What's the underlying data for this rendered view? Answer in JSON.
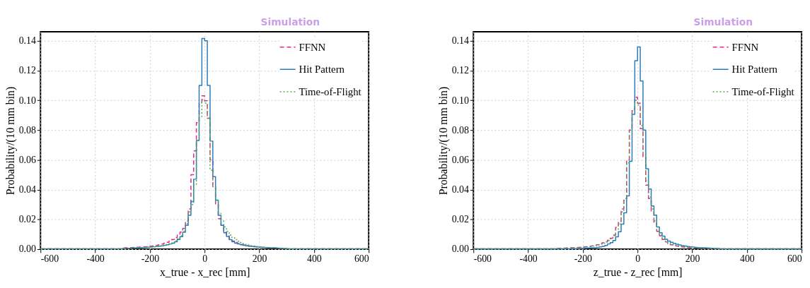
{
  "chart_data": [
    {
      "type": "histogram",
      "xlabel": "x_true - x_rec [mm]",
      "ylabel": "Probability/(10 mm bin)",
      "annotations": [
        "Simulation"
      ],
      "bins": [
        -600,
        -300,
        -290,
        -280,
        -270,
        -260,
        -250,
        -240,
        -230,
        -220,
        -210,
        -200,
        -190,
        -180,
        -170,
        -160,
        -150,
        -140,
        -130,
        -120,
        -110,
        -100,
        -90,
        -80,
        -70,
        -60,
        -50,
        -40,
        -30,
        -20,
        -10,
        0,
        10,
        20,
        30,
        40,
        50,
        60,
        70,
        80,
        90,
        100,
        110,
        120,
        130,
        140,
        150,
        160,
        170,
        180,
        190,
        200,
        210,
        220,
        230,
        240,
        250,
        260,
        270,
        280,
        290,
        300,
        600
      ],
      "series": [
        {
          "name": "FFNN",
          "color": "#e7298a",
          "line_style": "dashed",
          "values": [
            0.0003,
            0.0008,
            0.0009,
            0.001,
            0.0011,
            0.0012,
            0.0013,
            0.0014,
            0.0015,
            0.0016,
            0.0018,
            0.002,
            0.0023,
            0.0026,
            0.003,
            0.0034,
            0.004,
            0.0046,
            0.0055,
            0.0065,
            0.0078,
            0.0095,
            0.0115,
            0.014,
            0.019,
            0.027,
            0.05,
            0.066,
            0.085,
            0.098,
            0.103,
            0.0997,
            0.088,
            0.06,
            0.042,
            0.03,
            0.0205,
            0.016,
            0.0115,
            0.009,
            0.007,
            0.0055,
            0.0045,
            0.0038,
            0.0032,
            0.0028,
            0.0024,
            0.0021,
            0.0019,
            0.0017,
            0.0015,
            0.0013,
            0.0012,
            0.0011,
            0.001,
            0.0009,
            0.0008,
            0.0007,
            0.0006,
            0.0006,
            0.0005,
            0.0003
          ]
        },
        {
          "name": "Hit Pattern",
          "color": "#2b7bba",
          "line_style": "solid",
          "values": [
            0.0003,
            0.0005,
            0.0006,
            0.0006,
            0.0007,
            0.0008,
            0.0009,
            0.001,
            0.0011,
            0.0012,
            0.0013,
            0.0014,
            0.0016,
            0.0018,
            0.002,
            0.0023,
            0.0026,
            0.003,
            0.0035,
            0.004,
            0.005,
            0.0065,
            0.0084,
            0.0114,
            0.016,
            0.0228,
            0.032,
            0.047,
            0.073,
            0.11,
            0.1415,
            0.14,
            0.11,
            0.0726,
            0.0487,
            0.033,
            0.0228,
            0.016,
            0.011,
            0.0085,
            0.0064,
            0.005,
            0.004,
            0.0035,
            0.003,
            0.0026,
            0.0023,
            0.002,
            0.0018,
            0.0016,
            0.0014,
            0.0013,
            0.0012,
            0.0011,
            0.001,
            0.0009,
            0.0008,
            0.0007,
            0.0006,
            0.0006,
            0.0005,
            0.0003
          ]
        },
        {
          "name": "Time-of-Flight",
          "color": "#4daf4a",
          "line_style": "dotted",
          "values": [
            0.0003,
            0.0004,
            0.0005,
            0.0005,
            0.0006,
            0.0007,
            0.0008,
            0.0009,
            0.001,
            0.0011,
            0.0012,
            0.0013,
            0.0015,
            0.0017,
            0.002,
            0.0023,
            0.0027,
            0.0032,
            0.0038,
            0.0046,
            0.0056,
            0.007,
            0.009,
            0.012,
            0.017,
            0.025,
            0.03,
            0.043,
            0.073,
            0.089,
            0.1005,
            0.098,
            0.088,
            0.053,
            0.042,
            0.032,
            0.024,
            0.019,
            0.015,
            0.012,
            0.0095,
            0.0078,
            0.0064,
            0.0053,
            0.0045,
            0.0038,
            0.0032,
            0.0028,
            0.0024,
            0.0021,
            0.0018,
            0.0016,
            0.0014,
            0.0012,
            0.0011,
            0.001,
            0.0009,
            0.0008,
            0.0007,
            0.0006,
            0.0005,
            0.0003
          ]
        }
      ],
      "xlim": [
        -600,
        600
      ],
      "xticks": [
        -600,
        -400,
        -200,
        0,
        200,
        400,
        600
      ],
      "ylim": [
        0,
        0.146
      ],
      "yticks": [
        {
          "value": 0,
          "label": "0.00"
        },
        {
          "value": 0.02,
          "label": "0.02"
        },
        {
          "value": 0.04,
          "label": "0.04"
        },
        {
          "value": 0.06,
          "label": "0.06"
        },
        {
          "value": 0.08,
          "label": "0.08"
        },
        {
          "value": 0.1,
          "label": "0.10"
        },
        {
          "value": 0.12,
          "label": "0.12"
        },
        {
          "value": 0.14,
          "label": "0.14"
        }
      ],
      "grid": true,
      "legend": "top right"
    },
    {
      "type": "histogram",
      "xlabel": "z_true - z_rec [mm]",
      "ylabel": "Probability/(10 mm bin)",
      "annotations": [
        "Simulation"
      ],
      "bins": [
        -600,
        -300,
        -290,
        -280,
        -270,
        -260,
        -250,
        -240,
        -230,
        -220,
        -210,
        -200,
        -190,
        -180,
        -170,
        -160,
        -150,
        -140,
        -130,
        -120,
        -110,
        -100,
        -90,
        -80,
        -70,
        -60,
        -50,
        -40,
        -30,
        -20,
        -10,
        0,
        10,
        20,
        30,
        40,
        50,
        60,
        70,
        80,
        90,
        100,
        110,
        120,
        130,
        140,
        150,
        160,
        170,
        180,
        190,
        200,
        210,
        220,
        230,
        240,
        250,
        260,
        270,
        280,
        290,
        300,
        600
      ],
      "series": [
        {
          "name": "FFNN",
          "color": "#e7298a",
          "line_style": "dashed",
          "values": [
            0.0002,
            0.0006,
            0.0006,
            0.0007,
            0.0007,
            0.0008,
            0.0009,
            0.001,
            0.0011,
            0.0012,
            0.0013,
            0.0015,
            0.0017,
            0.0019,
            0.0022,
            0.0026,
            0.003,
            0.0036,
            0.0043,
            0.005,
            0.006,
            0.0073,
            0.0095,
            0.0146,
            0.018,
            0.027,
            0.034,
            0.06,
            0.08,
            0.094,
            0.102,
            0.098,
            0.081,
            0.062,
            0.043,
            0.034,
            0.025,
            0.018,
            0.012,
            0.009,
            0.0065,
            0.0048,
            0.0038,
            0.003,
            0.0025,
            0.0021,
            0.0018,
            0.0015,
            0.0013,
            0.0011,
            0.001,
            0.0009,
            0.0008,
            0.0007,
            0.0006,
            0.0006,
            0.0005,
            0.0005,
            0.0004,
            0.0004,
            0.0004,
            0.0002
          ]
        },
        {
          "name": "Hit Pattern",
          "color": "#2b7bba",
          "line_style": "solid",
          "values": [
            0.0002,
            0.0002,
            0.0002,
            0.0002,
            0.0003,
            0.0003,
            0.0003,
            0.0004,
            0.0004,
            0.0005,
            0.0005,
            0.0006,
            0.0007,
            0.0008,
            0.0009,
            0.001,
            0.0012,
            0.0015,
            0.0019,
            0.0025,
            0.0035,
            0.0044,
            0.0058,
            0.0083,
            0.0117,
            0.0168,
            0.0244,
            0.0358,
            0.059,
            0.0905,
            0.1266,
            0.1358,
            0.113,
            0.08,
            0.054,
            0.0404,
            0.029,
            0.0229,
            0.0149,
            0.011,
            0.0088,
            0.0066,
            0.0055,
            0.0046,
            0.0039,
            0.0033,
            0.0028,
            0.0024,
            0.0021,
            0.0018,
            0.0016,
            0.0014,
            0.0012,
            0.0011,
            0.001,
            0.0009,
            0.0008,
            0.0007,
            0.0006,
            0.0005,
            0.0005,
            0.0002
          ]
        },
        {
          "name": "Time-of-Flight",
          "color": "#4daf4a",
          "line_style": "dotted",
          "values": [
            0.0002,
            0.0005,
            0.0005,
            0.0006,
            0.0006,
            0.0007,
            0.0008,
            0.0009,
            0.001,
            0.0011,
            0.0012,
            0.0014,
            0.0016,
            0.0018,
            0.0021,
            0.0025,
            0.0029,
            0.0034,
            0.004,
            0.0048,
            0.0058,
            0.007,
            0.009,
            0.013,
            0.017,
            0.025,
            0.033,
            0.058,
            0.079,
            0.093,
            0.1,
            0.097,
            0.083,
            0.065,
            0.046,
            0.035,
            0.027,
            0.019,
            0.013,
            0.0095,
            0.007,
            0.0052,
            0.004,
            0.0032,
            0.0027,
            0.0022,
            0.0019,
            0.0016,
            0.0014,
            0.0012,
            0.0011,
            0.001,
            0.0009,
            0.0008,
            0.0007,
            0.0006,
            0.0006,
            0.0005,
            0.0005,
            0.0004,
            0.0004,
            0.0002
          ]
        }
      ],
      "xlim": [
        -600,
        600
      ],
      "xticks": [
        -600,
        -400,
        -200,
        0,
        200,
        400,
        600
      ],
      "ylim": [
        0,
        0.146
      ],
      "yticks": [
        {
          "value": 0,
          "label": "0.00"
        },
        {
          "value": 0.02,
          "label": "0.02"
        },
        {
          "value": 0.04,
          "label": "0.04"
        },
        {
          "value": 0.06,
          "label": "0.06"
        },
        {
          "value": 0.08,
          "label": "0.08"
        },
        {
          "value": 0.1,
          "label": "0.10"
        },
        {
          "value": 0.12,
          "label": "0.12"
        },
        {
          "value": 0.14,
          "label": "0.14"
        }
      ],
      "grid": true,
      "legend": "top right"
    }
  ]
}
